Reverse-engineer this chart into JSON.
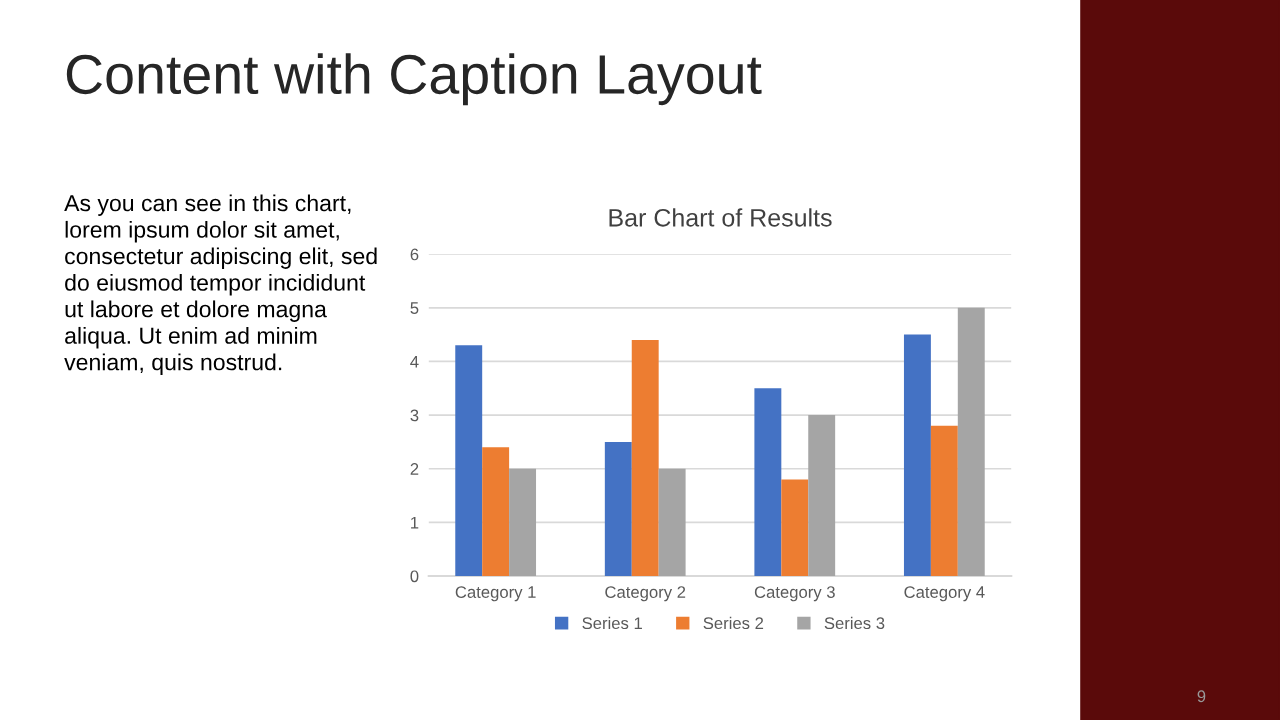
{
  "chart_data": {
    "type": "bar",
    "title": "Bar Chart of Results",
    "categories": [
      "Category 1",
      "Category 2",
      "Category 3",
      "Category 4"
    ],
    "series": [
      {
        "name": "Series 1",
        "color": "#4472c4",
        "values": [
          4.3,
          2.5,
          3.5,
          4.5
        ]
      },
      {
        "name": "Series 2",
        "color": "#ed7d31",
        "values": [
          2.4,
          4.4,
          1.8,
          2.8
        ]
      },
      {
        "name": "Series 3",
        "color": "#a5a5a5",
        "values": [
          2,
          2,
          3,
          5
        ]
      }
    ],
    "ylim": [
      0,
      6
    ],
    "yticks": [
      0,
      1,
      2,
      3,
      4,
      5,
      6
    ],
    "grid": "y",
    "legend": "bottom",
    "annotations": [
      "Content with Caption Layout",
      "As you can see in this chart, lorem ipsum dolor sit amet, consectetur adipiscing elit, sed do eiusmod tempor incididunt ut labore et dolore magna aliqua. Ut enim ad minim veniam, quis nostrud.",
      "9"
    ]
  }
}
